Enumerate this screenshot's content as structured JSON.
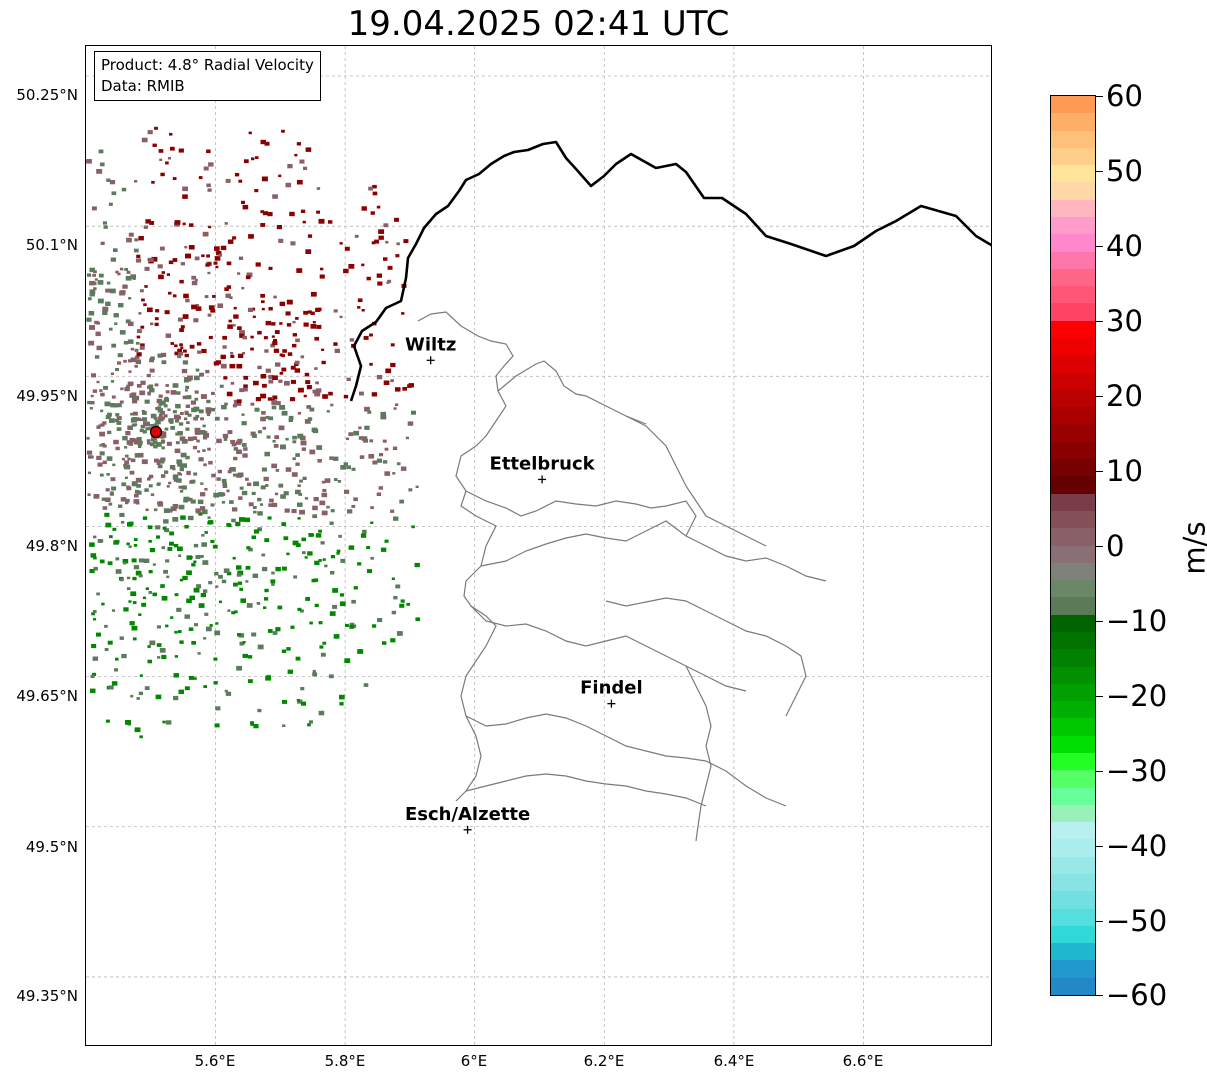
{
  "title": "19.04.2025 02:41 UTC",
  "info": {
    "product_line": "Product: 4.8° Radial Velocity",
    "data_line": "Data: RMIB"
  },
  "map": {
    "lon_range": [
      5.4,
      6.8
    ],
    "lat_range": [
      49.28,
      50.28
    ],
    "lat_ticks": [
      "50.25°N",
      "50.1°N",
      "49.95°N",
      "49.8°N",
      "49.65°N",
      "49.5°N",
      "49.35°N"
    ],
    "lon_ticks": [
      "5.6°E",
      "5.8°E",
      "6°E",
      "6.2°E",
      "6.4°E",
      "6.6°E"
    ],
    "gridlines": "dashed",
    "radar_site_color": "#e00000",
    "cities": [
      {
        "name": "Wiltz",
        "lon": 5.932,
        "lat": 49.966
      },
      {
        "name": "Ettelbruck",
        "lon": 6.104,
        "lat": 49.847
      },
      {
        "name": "Findel",
        "lon": 6.211,
        "lat": 49.623
      },
      {
        "name": "Esch/Alzette",
        "lon": 5.989,
        "lat": 49.497
      }
    ]
  },
  "colorbar": {
    "label": "m/s",
    "min": -60,
    "max": 60,
    "tick_labels": [
      "60",
      "50",
      "40",
      "30",
      "20",
      "10",
      "0",
      "−10",
      "−20",
      "−30",
      "−40",
      "−50",
      "−60"
    ],
    "colors_top_to_bottom": [
      "#ff9a55",
      "#ffae66",
      "#ffc07a",
      "#ffcf8a",
      "#ffe49a",
      "#ffd8a8",
      "#ffb6c1",
      "#ff9ccc",
      "#ff88cc",
      "#ff77aa",
      "#ff6688",
      "#ff5577",
      "#ff4466",
      "#ff0000",
      "#ee0000",
      "#dd0000",
      "#cc0000",
      "#bb0000",
      "#aa0000",
      "#990000",
      "#880000",
      "#770000",
      "#660000",
      "#7a3c48",
      "#855058",
      "#8a6068",
      "#8a7075",
      "#7e8278",
      "#6a8868",
      "#5a7a58",
      "#006400",
      "#007200",
      "#008200",
      "#009000",
      "#00a000",
      "#00b000",
      "#00c800",
      "#00e000",
      "#22ff22",
      "#55ff66",
      "#66ff99",
      "#99f0b8",
      "#b8f0f0",
      "#aaeeee",
      "#99e8e8",
      "#88e4e4",
      "#70e0e0",
      "#55dede",
      "#30d8d8",
      "#20b8d0",
      "#2299cc",
      "#2288c8"
    ]
  },
  "radar_legend_colors": {
    "inbound_strong": "#008800",
    "inbound_weak": "#5c7a5c",
    "outbound_weak": "#8a6068",
    "outbound_strong": "#8b0000"
  }
}
